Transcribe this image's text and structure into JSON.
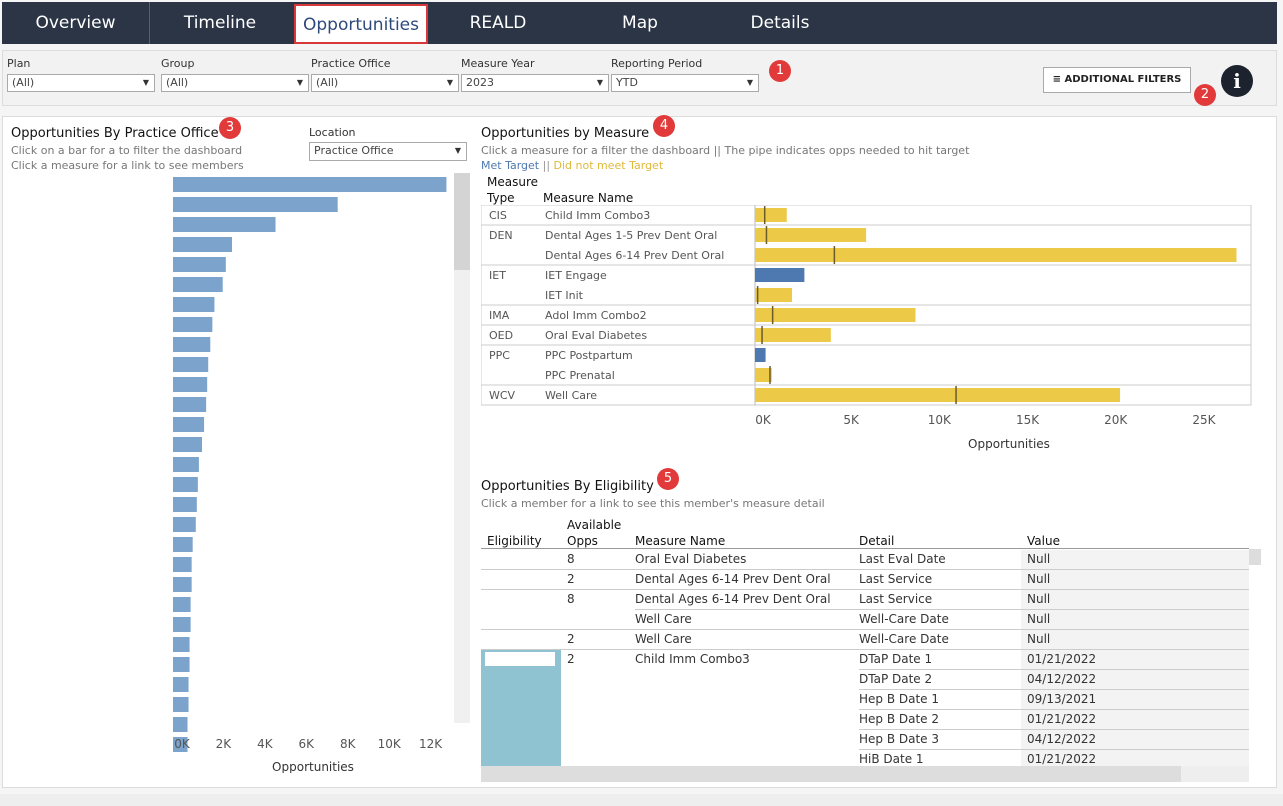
{
  "nav": {
    "tabs": [
      {
        "label": "Overview"
      },
      {
        "label": "Timeline"
      },
      {
        "label": "Opportunities"
      },
      {
        "label": "REALD"
      },
      {
        "label": "Map"
      },
      {
        "label": "Details"
      }
    ],
    "active": "Opportunities"
  },
  "filters": {
    "items": [
      {
        "label": "Plan",
        "value": "(All)"
      },
      {
        "label": "Group",
        "value": "(All)"
      },
      {
        "label": "Practice Office",
        "value": "(All)"
      },
      {
        "label": "Measure Year",
        "value": "2023"
      },
      {
        "label": "Reporting Period",
        "value": "YTD"
      }
    ],
    "additional_label": "ADDITIONAL FILTERS",
    "info_glyph": "i"
  },
  "badges": [
    "1",
    "2",
    "3",
    "4",
    "5"
  ],
  "office_panel": {
    "title": "Opportunities By Practice Office",
    "sub1": "Click on a bar for a to filter the dashboard",
    "sub2": "Click a measure for a link to see members",
    "location_label": "Location",
    "location_value": "Practice Office"
  },
  "measure_panel": {
    "title": "Opportunities by Measure",
    "sub": "Click a measure for a filter the dashboard || The pipe indicates opps needed to hit target",
    "legend_met": "Met Target",
    "legend_sep": "||",
    "legend_not": "Did not meet Target",
    "col_type_1": "Measure",
    "col_type_2": "Type",
    "col_name": "Measure Name",
    "colors": {
      "met": "#4e79b0",
      "not": "#edc948"
    }
  },
  "eligibility_panel": {
    "title": "Opportunities By Eligibility",
    "sub": "Click a member for a link to see this member's measure detail",
    "headers": {
      "eligibility": "Eligibility",
      "avail_1": "Available",
      "avail_2": "Opps",
      "measure": "Measure Name",
      "detail": "Detail",
      "value": "Value"
    },
    "rows": [
      {
        "opps": "8",
        "measure": "Oral Eval Diabetes",
        "detail": "Last Eval Date",
        "value": "Null"
      },
      {
        "opps": "2",
        "measure": "Dental Ages 6-14 Prev Dent Oral",
        "detail": "Last Service",
        "value": "Null"
      },
      {
        "opps": "8",
        "measure": "Dental Ages 6-14 Prev Dent Oral",
        "detail": "Last Service",
        "value": "Null"
      },
      {
        "opps": "",
        "measure": "Well Care",
        "detail": "Well-Care Date",
        "value": "Null"
      },
      {
        "opps": "2",
        "measure": "Well Care",
        "detail": "Well-Care Date",
        "value": "Null"
      },
      {
        "opps": "2",
        "measure": "Child Imm Combo3",
        "detail": "DTaP Date 1",
        "value": "01/21/2022"
      },
      {
        "opps": "",
        "measure": "",
        "detail": "DTaP Date 2",
        "value": "04/12/2022"
      },
      {
        "opps": "",
        "measure": "",
        "detail": "Hep B Date 1",
        "value": "09/13/2021"
      },
      {
        "opps": "",
        "measure": "",
        "detail": "Hep B Date 2",
        "value": "01/21/2022"
      },
      {
        "opps": "",
        "measure": "",
        "detail": "Hep B Date 3",
        "value": "04/12/2022"
      },
      {
        "opps": "",
        "measure": "",
        "detail": "HiB Date 1",
        "value": "01/21/2022"
      }
    ]
  },
  "chart_data": [
    {
      "type": "bar",
      "orientation": "horizontal",
      "title": "Opportunities By Practice Office",
      "xlabel": "Opportunities",
      "xlim": [
        0,
        14000
      ],
      "xticks": [
        "0K",
        "2K",
        "4K",
        "6K",
        "8K",
        "10K",
        "12K"
      ],
      "xtick_values": [
        0,
        2000,
        4000,
        6000,
        8000,
        10000,
        12000
      ],
      "color": "#7ba3cc",
      "values": [
        13200,
        7950,
        4950,
        2850,
        2550,
        2400,
        2000,
        1900,
        1800,
        1700,
        1650,
        1600,
        1500,
        1400,
        1250,
        1200,
        1150,
        1100,
        950,
        900,
        900,
        850,
        850,
        800,
        800,
        750,
        750,
        700,
        700
      ]
    },
    {
      "type": "bar",
      "orientation": "horizontal",
      "title": "Opportunities by Measure",
      "xlabel": "Opportunities",
      "xlim": [
        0,
        27500
      ],
      "xticks": [
        "0K",
        "5K",
        "10K",
        "15K",
        "20K",
        "25K"
      ],
      "xtick_values": [
        0,
        5000,
        10000,
        15000,
        20000,
        25000
      ],
      "groups": [
        {
          "type": "CIS",
          "measures": [
            {
              "name": "Child Imm Combo3",
              "value": 1800,
              "target": 550,
              "met": false
            }
          ]
        },
        {
          "type": "DEN",
          "measures": [
            {
              "name": "Dental Ages 1-5 Prev Dent Oral",
              "value": 6300,
              "target": 650,
              "met": false
            },
            {
              "name": "Dental Ages 6-14 Prev Dent Oral",
              "value": 27300,
              "target": 4500,
              "met": false
            }
          ]
        },
        {
          "type": "IET",
          "measures": [
            {
              "name": "IET Engage",
              "value": 2800,
              "target": null,
              "met": true
            },
            {
              "name": "IET Init",
              "value": 2100,
              "target": 150,
              "met": false
            }
          ]
        },
        {
          "type": "IMA",
          "measures": [
            {
              "name": "Adol Imm Combo2",
              "value": 9100,
              "target": 1000,
              "met": false
            }
          ]
        },
        {
          "type": "OED",
          "measures": [
            {
              "name": "Oral Eval Diabetes",
              "value": 4300,
              "target": 400,
              "met": false
            }
          ]
        },
        {
          "type": "PPC",
          "measures": [
            {
              "name": "PPC Postpartum",
              "value": 600,
              "target": null,
              "met": true
            },
            {
              "name": "PPC Prenatal",
              "value": 950,
              "target": 850,
              "met": false
            }
          ]
        },
        {
          "type": "WCV",
          "measures": [
            {
              "name": "Well Care",
              "value": 20700,
              "target": 11400,
              "met": false
            }
          ]
        }
      ]
    }
  ]
}
